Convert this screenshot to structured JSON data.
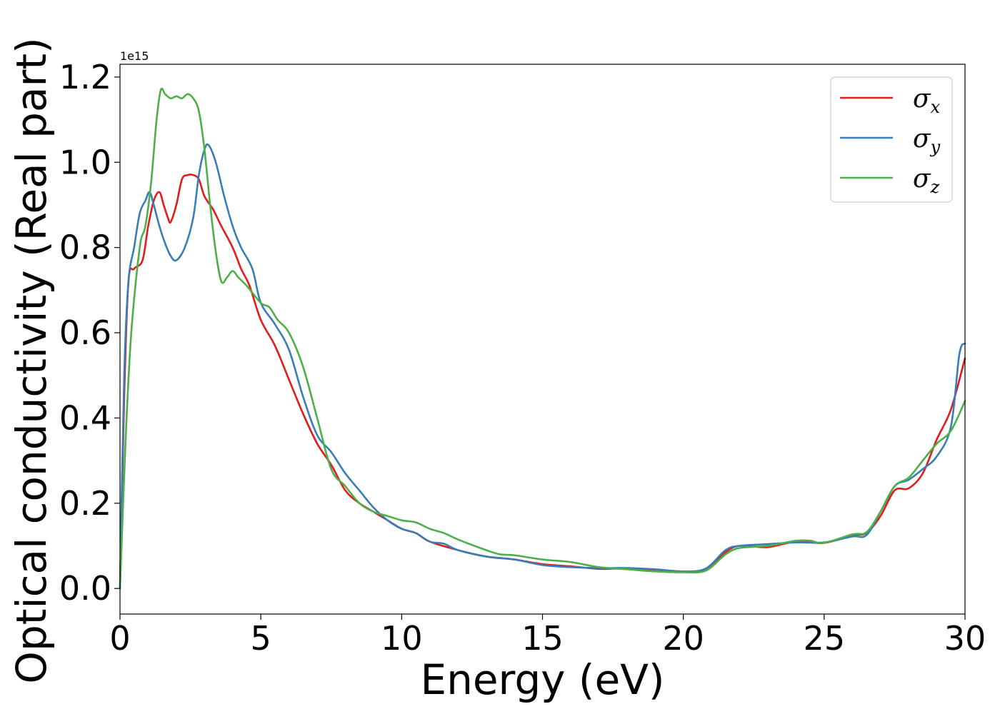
{
  "chart_data": {
    "type": "line",
    "title": "",
    "xlabel": "Energy (eV)",
    "ylabel": "Optical conductivity (Real part)",
    "y_offset_label": "1e15",
    "y_scale_factor": 1000000000000000.0,
    "xlim": [
      0,
      30
    ],
    "ylim": [
      -0.06,
      1.23
    ],
    "x_ticks": [
      0,
      5,
      10,
      15,
      20,
      25,
      30
    ],
    "y_ticks": [
      0.0,
      0.2,
      0.4,
      0.6,
      0.8,
      1.0,
      1.2
    ],
    "x_tick_labels": [
      "0",
      "5",
      "10",
      "15",
      "20",
      "25",
      "30"
    ],
    "y_tick_labels": [
      "0.0",
      "0.2",
      "0.4",
      "0.6",
      "0.8",
      "1.0",
      "1.2"
    ],
    "grid": false,
    "legend_position": "top-right",
    "series": [
      {
        "name": "σx",
        "symbol": "σ",
        "subscript": "x",
        "color": "#e41a1c",
        "points": [
          [
            0,
            0.0
          ],
          [
            0.15,
            0.45
          ],
          [
            0.3,
            0.72
          ],
          [
            0.5,
            0.75
          ],
          [
            0.8,
            0.77
          ],
          [
            1.0,
            0.85
          ],
          [
            1.2,
            0.91
          ],
          [
            1.4,
            0.93
          ],
          [
            1.55,
            0.9
          ],
          [
            1.7,
            0.87
          ],
          [
            1.8,
            0.86
          ],
          [
            2.0,
            0.9
          ],
          [
            2.2,
            0.96
          ],
          [
            2.4,
            0.97
          ],
          [
            2.6,
            0.97
          ],
          [
            2.8,
            0.96
          ],
          [
            3.0,
            0.92
          ],
          [
            3.3,
            0.89
          ],
          [
            3.6,
            0.85
          ],
          [
            4.0,
            0.8
          ],
          [
            4.3,
            0.75
          ],
          [
            4.6,
            0.71
          ],
          [
            5.0,
            0.63
          ],
          [
            5.5,
            0.57
          ],
          [
            6.0,
            0.49
          ],
          [
            6.5,
            0.41
          ],
          [
            7.0,
            0.34
          ],
          [
            7.5,
            0.29
          ],
          [
            8.0,
            0.23
          ],
          [
            8.5,
            0.2
          ],
          [
            9.0,
            0.18
          ],
          [
            9.5,
            0.16
          ],
          [
            10.0,
            0.14
          ],
          [
            10.5,
            0.13
          ],
          [
            11.0,
            0.11
          ],
          [
            12.0,
            0.09
          ],
          [
            13.0,
            0.075
          ],
          [
            14.0,
            0.068
          ],
          [
            15.0,
            0.057
          ],
          [
            16.0,
            0.052
          ],
          [
            17.0,
            0.046
          ],
          [
            18.0,
            0.047
          ],
          [
            19.0,
            0.044
          ],
          [
            20.0,
            0.04
          ],
          [
            20.8,
            0.045
          ],
          [
            21.5,
            0.085
          ],
          [
            22.0,
            0.1
          ],
          [
            23.0,
            0.097
          ],
          [
            24.0,
            0.11
          ],
          [
            25.0,
            0.107
          ],
          [
            26.0,
            0.125
          ],
          [
            26.5,
            0.13
          ],
          [
            27.0,
            0.17
          ],
          [
            27.5,
            0.23
          ],
          [
            28.0,
            0.235
          ],
          [
            28.5,
            0.27
          ],
          [
            29.0,
            0.35
          ],
          [
            29.5,
            0.42
          ],
          [
            30.0,
            0.54
          ]
        ]
      },
      {
        "name": "σy",
        "symbol": "σ",
        "subscript": "y",
        "color": "#377eb8",
        "points": [
          [
            0,
            0.0
          ],
          [
            0.15,
            0.5
          ],
          [
            0.3,
            0.72
          ],
          [
            0.5,
            0.8
          ],
          [
            0.7,
            0.88
          ],
          [
            0.9,
            0.91
          ],
          [
            1.05,
            0.93
          ],
          [
            1.2,
            0.9
          ],
          [
            1.4,
            0.85
          ],
          [
            1.6,
            0.81
          ],
          [
            1.8,
            0.78
          ],
          [
            2.0,
            0.77
          ],
          [
            2.3,
            0.8
          ],
          [
            2.6,
            0.87
          ],
          [
            2.8,
            0.97
          ],
          [
            3.0,
            1.03
          ],
          [
            3.15,
            1.04
          ],
          [
            3.4,
            1.0
          ],
          [
            3.7,
            0.92
          ],
          [
            4.0,
            0.85
          ],
          [
            4.3,
            0.8
          ],
          [
            4.7,
            0.75
          ],
          [
            5.0,
            0.67
          ],
          [
            5.5,
            0.62
          ],
          [
            6.0,
            0.56
          ],
          [
            6.5,
            0.45
          ],
          [
            7.0,
            0.36
          ],
          [
            7.5,
            0.32
          ],
          [
            8.0,
            0.27
          ],
          [
            8.5,
            0.23
          ],
          [
            9.0,
            0.19
          ],
          [
            9.5,
            0.16
          ],
          [
            10.0,
            0.14
          ],
          [
            10.5,
            0.13
          ],
          [
            11.0,
            0.11
          ],
          [
            11.5,
            0.105
          ],
          [
            12.0,
            0.09
          ],
          [
            13.0,
            0.075
          ],
          [
            14.0,
            0.068
          ],
          [
            15.0,
            0.055
          ],
          [
            16.0,
            0.05
          ],
          [
            17.0,
            0.048
          ],
          [
            18.0,
            0.048
          ],
          [
            19.0,
            0.045
          ],
          [
            20.0,
            0.04
          ],
          [
            20.8,
            0.047
          ],
          [
            21.5,
            0.09
          ],
          [
            22.0,
            0.1
          ],
          [
            23.0,
            0.104
          ],
          [
            24.0,
            0.108
          ],
          [
            25.0,
            0.108
          ],
          [
            26.0,
            0.122
          ],
          [
            26.5,
            0.125
          ],
          [
            27.0,
            0.18
          ],
          [
            27.5,
            0.24
          ],
          [
            28.0,
            0.255
          ],
          [
            28.5,
            0.28
          ],
          [
            29.0,
            0.31
          ],
          [
            29.5,
            0.38
          ],
          [
            29.8,
            0.55
          ],
          [
            30.0,
            0.575
          ]
        ]
      },
      {
        "name": "σz",
        "symbol": "σ",
        "subscript": "z",
        "color": "#4daf4a",
        "points": [
          [
            0,
            0.0
          ],
          [
            0.2,
            0.35
          ],
          [
            0.4,
            0.6
          ],
          [
            0.7,
            0.8
          ],
          [
            0.9,
            0.85
          ],
          [
            1.1,
            0.95
          ],
          [
            1.3,
            1.1
          ],
          [
            1.45,
            1.17
          ],
          [
            1.6,
            1.16
          ],
          [
            1.8,
            1.15
          ],
          [
            2.0,
            1.155
          ],
          [
            2.2,
            1.15
          ],
          [
            2.4,
            1.16
          ],
          [
            2.6,
            1.15
          ],
          [
            2.8,
            1.12
          ],
          [
            3.0,
            1.03
          ],
          [
            3.2,
            0.9
          ],
          [
            3.4,
            0.79
          ],
          [
            3.6,
            0.72
          ],
          [
            3.8,
            0.73
          ],
          [
            4.0,
            0.745
          ],
          [
            4.2,
            0.73
          ],
          [
            4.5,
            0.71
          ],
          [
            5.0,
            0.67
          ],
          [
            5.3,
            0.66
          ],
          [
            5.6,
            0.63
          ],
          [
            6.0,
            0.6
          ],
          [
            6.5,
            0.52
          ],
          [
            7.0,
            0.4
          ],
          [
            7.5,
            0.28
          ],
          [
            8.0,
            0.24
          ],
          [
            8.5,
            0.2
          ],
          [
            9.0,
            0.18
          ],
          [
            9.5,
            0.17
          ],
          [
            10.0,
            0.16
          ],
          [
            10.5,
            0.155
          ],
          [
            11.0,
            0.14
          ],
          [
            11.5,
            0.13
          ],
          [
            12.0,
            0.115
          ],
          [
            13.0,
            0.09
          ],
          [
            13.5,
            0.08
          ],
          [
            14.0,
            0.078
          ],
          [
            15.0,
            0.068
          ],
          [
            16.0,
            0.062
          ],
          [
            17.0,
            0.05
          ],
          [
            18.0,
            0.045
          ],
          [
            19.0,
            0.04
          ],
          [
            20.0,
            0.038
          ],
          [
            20.8,
            0.042
          ],
          [
            21.5,
            0.08
          ],
          [
            22.0,
            0.095
          ],
          [
            23.0,
            0.1
          ],
          [
            24.0,
            0.112
          ],
          [
            24.5,
            0.112
          ],
          [
            25.0,
            0.107
          ],
          [
            26.0,
            0.127
          ],
          [
            26.5,
            0.132
          ],
          [
            27.0,
            0.18
          ],
          [
            27.5,
            0.24
          ],
          [
            28.0,
            0.26
          ],
          [
            28.5,
            0.3
          ],
          [
            29.0,
            0.34
          ],
          [
            29.5,
            0.37
          ],
          [
            30.0,
            0.44
          ]
        ]
      }
    ]
  }
}
